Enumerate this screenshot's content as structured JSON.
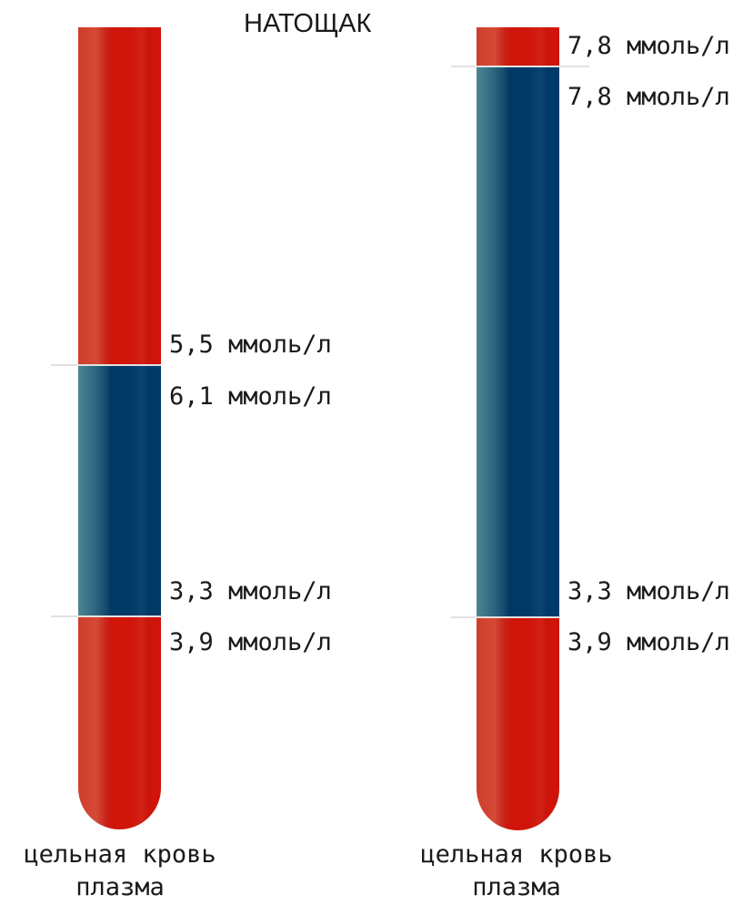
{
  "title": "НАТОЩАК",
  "columns": [
    {
      "labels": {
        "top_whole": "5,5 ммоль/л",
        "top_plasma": "6,1 ммоль/л",
        "bottom_whole": "3,3 ммоль/л",
        "bottom_plasma": "3,9 ммоль/л"
      },
      "caption_line1": "цельная кровь",
      "caption_line2": "плазма"
    },
    {
      "labels": {
        "top_whole": "7,8 ммоль/л",
        "top_plasma": "7,8 ммоль/л",
        "bottom_whole": "3,3 ммоль/л",
        "bottom_plasma": "3,9 ммоль/л"
      },
      "caption_line1": "цельная кровь",
      "caption_line2": "плазма"
    }
  ],
  "colors": {
    "high_low_zone": "#d01409",
    "normal_zone": "#003a6a"
  }
}
